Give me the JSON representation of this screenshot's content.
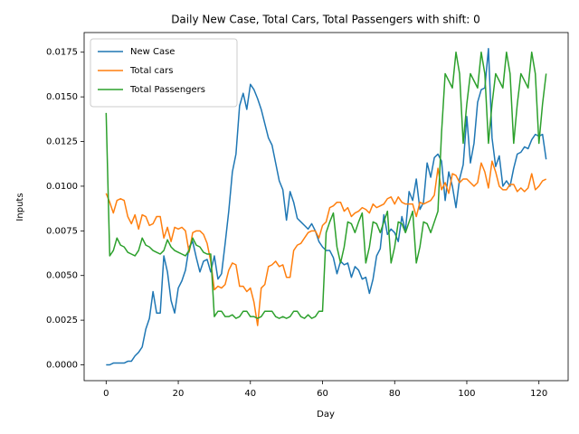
{
  "chart_data": {
    "type": "line",
    "title": "Daily New Case, Total Cars, Total Passengers with shift: 0",
    "x_label": "Day",
    "y_label": "Inputs",
    "x": [
      0,
      1,
      2,
      3,
      4,
      5,
      6,
      7,
      8,
      9,
      10,
      11,
      12,
      13,
      14,
      15,
      16,
      17,
      18,
      19,
      20,
      21,
      22,
      23,
      24,
      25,
      26,
      27,
      28,
      29,
      30,
      31,
      32,
      33,
      34,
      35,
      36,
      37,
      38,
      39,
      40,
      41,
      42,
      43,
      44,
      45,
      46,
      47,
      48,
      49,
      50,
      51,
      52,
      53,
      54,
      55,
      56,
      57,
      58,
      59,
      60,
      61,
      62,
      63,
      64,
      65,
      66,
      67,
      68,
      69,
      70,
      71,
      72,
      73,
      74,
      75,
      76,
      77,
      78,
      79,
      80,
      81,
      82,
      83,
      84,
      85,
      86,
      87,
      88,
      89,
      90,
      91,
      92,
      93,
      94,
      95,
      96,
      97,
      98,
      99,
      100,
      101,
      102,
      103,
      104,
      105,
      106,
      107,
      108,
      109,
      110,
      111,
      112,
      113,
      114,
      115,
      116,
      117,
      118,
      119,
      120,
      121,
      122
    ],
    "series": [
      {
        "name": "New Case",
        "color": "#1f77b4",
        "values": [
          0.0,
          0.0,
          0.0001,
          0.0001,
          0.0001,
          0.0001,
          0.0002,
          0.0002,
          0.0005,
          0.0007,
          0.001,
          0.002,
          0.0026,
          0.0041,
          0.0029,
          0.0029,
          0.0061,
          0.0052,
          0.0036,
          0.0029,
          0.0043,
          0.0047,
          0.0053,
          0.0066,
          0.0069,
          0.006,
          0.0052,
          0.0058,
          0.0059,
          0.0052,
          0.0061,
          0.0048,
          0.0051,
          0.0068,
          0.0086,
          0.0108,
          0.0118,
          0.0145,
          0.0152,
          0.0143,
          0.0157,
          0.0154,
          0.0149,
          0.0143,
          0.0135,
          0.0127,
          0.0123,
          0.0113,
          0.0103,
          0.0098,
          0.0081,
          0.0097,
          0.0091,
          0.0082,
          0.008,
          0.0078,
          0.0076,
          0.0079,
          0.0075,
          0.0069,
          0.0066,
          0.0064,
          0.0064,
          0.006,
          0.0051,
          0.0058,
          0.0056,
          0.0057,
          0.0049,
          0.0055,
          0.0053,
          0.0048,
          0.0049,
          0.004,
          0.0048,
          0.0061,
          0.0065,
          0.0084,
          0.0073,
          0.0076,
          0.0074,
          0.0069,
          0.0083,
          0.0075,
          0.0097,
          0.0092,
          0.0104,
          0.0087,
          0.0091,
          0.0113,
          0.0105,
          0.0116,
          0.0118,
          0.0114,
          0.0092,
          0.0108,
          0.01,
          0.0088,
          0.0104,
          0.0112,
          0.0139,
          0.0113,
          0.0124,
          0.0147,
          0.0154,
          0.0155,
          0.0177,
          0.0127,
          0.0111,
          0.0117,
          0.01,
          0.0103,
          0.01,
          0.011,
          0.0118,
          0.0119,
          0.0122,
          0.0121,
          0.0126,
          0.0129,
          0.0128,
          0.0129,
          0.0115
        ]
      },
      {
        "name": "Total cars",
        "color": "#ff7f0e",
        "values": [
          0.0096,
          0.0091,
          0.0085,
          0.0092,
          0.0093,
          0.0092,
          0.0083,
          0.0079,
          0.0084,
          0.0076,
          0.0084,
          0.0083,
          0.0078,
          0.0079,
          0.0083,
          0.0083,
          0.0071,
          0.0077,
          0.0069,
          0.0077,
          0.0076,
          0.0077,
          0.0075,
          0.0063,
          0.0074,
          0.0075,
          0.0075,
          0.0073,
          0.0068,
          0.0058,
          0.0042,
          0.0044,
          0.0043,
          0.0045,
          0.0053,
          0.0057,
          0.0056,
          0.0044,
          0.0044,
          0.0041,
          0.0043,
          0.0035,
          0.0022,
          0.0043,
          0.0045,
          0.0055,
          0.0056,
          0.0058,
          0.0055,
          0.0056,
          0.0049,
          0.0049,
          0.0064,
          0.0067,
          0.0068,
          0.0071,
          0.0074,
          0.0075,
          0.0075,
          0.0071,
          0.0078,
          0.008,
          0.0088,
          0.0089,
          0.0091,
          0.0091,
          0.0086,
          0.0088,
          0.0083,
          0.0085,
          0.0086,
          0.0088,
          0.0087,
          0.0085,
          0.009,
          0.0088,
          0.0089,
          0.009,
          0.0093,
          0.0094,
          0.009,
          0.0094,
          0.0091,
          0.009,
          0.009,
          0.009,
          0.0083,
          0.0091,
          0.009,
          0.0091,
          0.0092,
          0.0095,
          0.011,
          0.0098,
          0.0102,
          0.0096,
          0.0107,
          0.0106,
          0.0102,
          0.0104,
          0.0104,
          0.0102,
          0.01,
          0.0102,
          0.0113,
          0.0108,
          0.0099,
          0.0114,
          0.0108,
          0.01,
          0.0098,
          0.0098,
          0.0101,
          0.0101,
          0.0097,
          0.0099,
          0.0097,
          0.0099,
          0.0107,
          0.0098,
          0.01,
          0.0103,
          0.0104
        ]
      },
      {
        "name": "Total Passengers",
        "color": "#2ca02c",
        "values": [
          0.0141,
          0.0061,
          0.0064,
          0.0071,
          0.0067,
          0.0066,
          0.0063,
          0.0062,
          0.0061,
          0.0064,
          0.0071,
          0.0067,
          0.0066,
          0.0064,
          0.0063,
          0.0062,
          0.0064,
          0.007,
          0.0066,
          0.0064,
          0.0063,
          0.0062,
          0.0061,
          0.0064,
          0.0071,
          0.0067,
          0.0066,
          0.0063,
          0.0062,
          0.0062,
          0.0027,
          0.003,
          0.003,
          0.0027,
          0.0027,
          0.0028,
          0.0026,
          0.0027,
          0.003,
          0.003,
          0.0027,
          0.0027,
          0.0026,
          0.0027,
          0.003,
          0.003,
          0.003,
          0.0027,
          0.0026,
          0.0027,
          0.0026,
          0.0027,
          0.003,
          0.003,
          0.0027,
          0.0026,
          0.0028,
          0.0026,
          0.0027,
          0.003,
          0.003,
          0.0074,
          0.008,
          0.0085,
          0.0066,
          0.0057,
          0.0066,
          0.008,
          0.0079,
          0.0074,
          0.008,
          0.0085,
          0.0057,
          0.0066,
          0.008,
          0.0079,
          0.0074,
          0.008,
          0.0086,
          0.0057,
          0.0066,
          0.008,
          0.0079,
          0.0074,
          0.008,
          0.0086,
          0.0057,
          0.0066,
          0.008,
          0.0079,
          0.0074,
          0.008,
          0.0086,
          0.013,
          0.0163,
          0.0159,
          0.0155,
          0.0175,
          0.0163,
          0.0124,
          0.0146,
          0.0163,
          0.0159,
          0.0155,
          0.0175,
          0.0163,
          0.0124,
          0.0146,
          0.0163,
          0.0159,
          0.0155,
          0.0175,
          0.0163,
          0.0124,
          0.0146,
          0.0163,
          0.0159,
          0.0155,
          0.0175,
          0.0163,
          0.0124,
          0.0146,
          0.0163
        ]
      }
    ],
    "xlim": [
      -6.1,
      128.1
    ],
    "xticks": [
      0,
      20,
      40,
      60,
      80,
      100,
      120
    ],
    "ylim": [
      -0.000885,
      0.0186
    ],
    "yticks": [
      {
        "value": 0,
        "label": "0.0000"
      },
      {
        "value": 0.0025,
        "label": "0.0025"
      },
      {
        "value": 0.005,
        "label": "0.0050"
      },
      {
        "value": 0.0075,
        "label": "0.0075"
      },
      {
        "value": 0.01,
        "label": "0.0100"
      },
      {
        "value": 0.0125,
        "label": "0.0125"
      },
      {
        "value": 0.015,
        "label": "0.0150"
      },
      {
        "value": 0.0175,
        "label": "0.0175"
      }
    ],
    "legend": "upper left",
    "grid": false
  }
}
